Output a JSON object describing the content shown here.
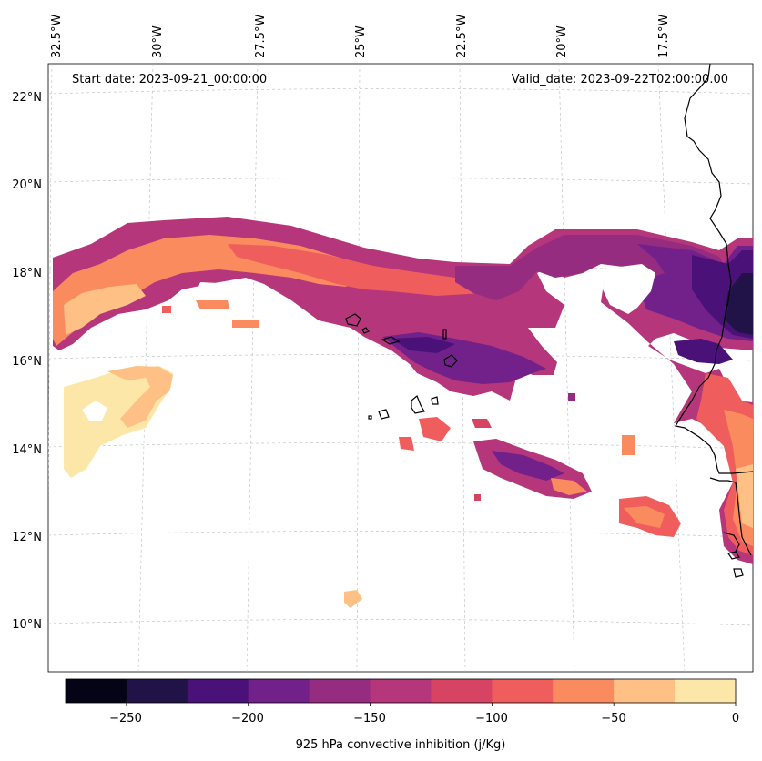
{
  "map": {
    "start_date": "Start date: 2023-09-21_00:00:00",
    "valid_date": "Valid_date: 2023-09-22T02:00:00.00",
    "lon_labels": [
      "32.5°W",
      "30°W",
      "27.5°W",
      "25°W",
      "22.5°W",
      "20°W",
      "17.5°W"
    ],
    "lat_labels": [
      "22°N",
      "20°N",
      "18°N",
      "16°N",
      "14°N",
      "12°N",
      "10°N"
    ]
  },
  "colorbar": {
    "label": "925 hPa convective inhibition (j/Kg)",
    "tick_labels": [
      "−250",
      "−200",
      "−150",
      "−100",
      "−50",
      "0"
    ],
    "range": [
      -275,
      0
    ],
    "levels": [
      -275,
      -250,
      -225,
      -200,
      -175,
      -150,
      -125,
      -100,
      -75,
      -50,
      -25,
      0
    ],
    "colors": [
      "#050416",
      "#211347",
      "#4a1279",
      "#72208a",
      "#952c80",
      "#b5367a",
      "#d74463",
      "#ef5e5c",
      "#fa8b5f",
      "#fec085",
      "#fce7a8"
    ]
  }
}
